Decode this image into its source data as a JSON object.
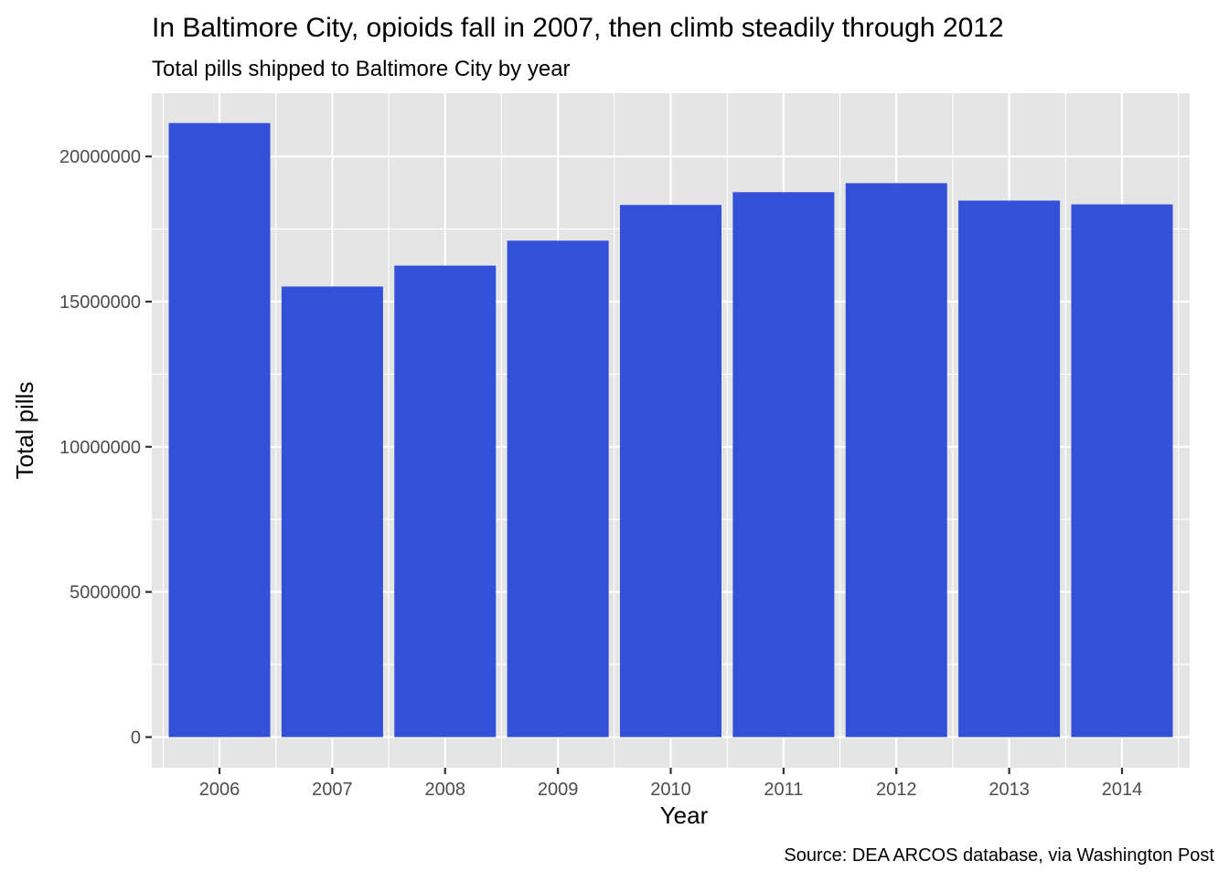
{
  "chart_data": {
    "type": "bar",
    "title": "In Baltimore City, opioids fall in 2007, then climb steadily through 2012",
    "subtitle": "Total pills shipped to Baltimore City by year",
    "xlabel": "Year",
    "ylabel": "Total pills",
    "caption": "Source: DEA ARCOS database, via Washington Post",
    "categories": [
      "2006",
      "2007",
      "2008",
      "2009",
      "2010",
      "2011",
      "2012",
      "2013",
      "2014"
    ],
    "values": [
      21150000,
      15520000,
      16240000,
      17100000,
      18330000,
      18770000,
      19080000,
      18480000,
      18350000
    ],
    "ylim": [
      -1056000,
      22178000
    ],
    "yticks": [
      0,
      5000000,
      10000000,
      15000000,
      20000000
    ],
    "ytick_labels": [
      "0",
      "5000000",
      "10000000",
      "15000000",
      "20000000"
    ],
    "grid": true,
    "legend": "none",
    "colors": {
      "bar": "#3350D9",
      "panel": "#E5E5E5",
      "gridline": "#FFFFFF",
      "tick_text": "#4D4D4D",
      "text": "#000000"
    }
  }
}
